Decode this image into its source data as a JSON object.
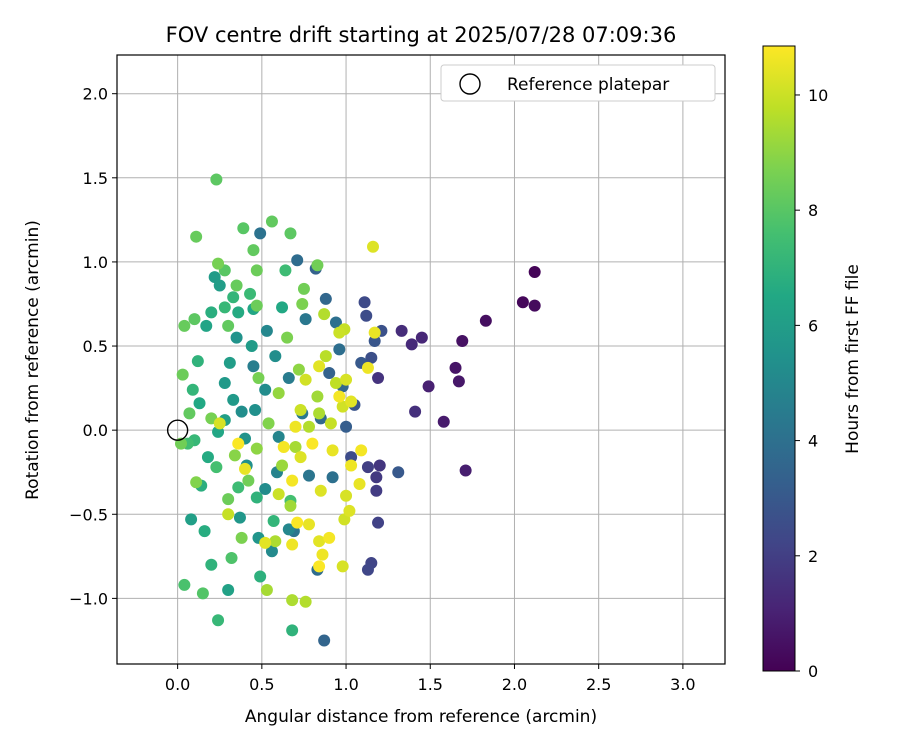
{
  "chart_data": {
    "type": "scatter",
    "title": "FOV centre drift starting at 2025/07/28 07:09:36",
    "xlabel": "Angular distance from reference (arcmin)",
    "ylabel": "Rotation from reference (arcmin)",
    "xlim": [
      -0.36,
      3.25
    ],
    "ylim": [
      -1.39,
      2.23
    ],
    "xticks": [
      "0.0",
      "0.5",
      "1.0",
      "1.5",
      "2.0",
      "2.5",
      "3.0"
    ],
    "xtick_values": [
      0,
      0.5,
      1.0,
      1.5,
      2.0,
      2.5,
      3.0
    ],
    "yticks": [
      "−1.0",
      "−0.5",
      "0.0",
      "0.5",
      "1.0",
      "1.5",
      "2.0"
    ],
    "ytick_values": [
      -1.0,
      -0.5,
      0.0,
      0.5,
      1.0,
      1.5,
      2.0
    ],
    "grid": true,
    "legend": {
      "placement": "top-right",
      "entries": [
        "Reference platepar"
      ]
    },
    "reference_point": {
      "x": 0.0,
      "y": 0.0
    },
    "colorbar": {
      "label": "Hours from first FF file",
      "range": [
        0,
        10.85
      ],
      "ticks": [
        "0",
        "2",
        "4",
        "6",
        "8",
        "10"
      ],
      "tick_values": [
        0,
        2,
        4,
        6,
        8,
        10
      ],
      "colormap": [
        "#440154",
        "#482475",
        "#414487",
        "#355f8d",
        "#2a788e",
        "#21918c",
        "#22a884",
        "#44bf70",
        "#7ad151",
        "#bddf26",
        "#fde725"
      ]
    },
    "points": [
      {
        "x": 2.12,
        "y": 0.94,
        "h": 0.1
      },
      {
        "x": 2.05,
        "y": 0.76,
        "h": 0.2
      },
      {
        "x": 2.12,
        "y": 0.74,
        "h": 0.3
      },
      {
        "x": 1.83,
        "y": 0.65,
        "h": 0.4
      },
      {
        "x": 1.69,
        "y": 0.53,
        "h": 0.5
      },
      {
        "x": 1.65,
        "y": 0.37,
        "h": 0.6
      },
      {
        "x": 1.67,
        "y": 0.29,
        "h": 0.7
      },
      {
        "x": 1.58,
        "y": 0.05,
        "h": 0.8
      },
      {
        "x": 1.71,
        "y": -0.24,
        "h": 0.9
      },
      {
        "x": 1.49,
        "y": 0.26,
        "h": 1.0
      },
      {
        "x": 1.45,
        "y": 0.55,
        "h": 1.2
      },
      {
        "x": 1.39,
        "y": 0.51,
        "h": 1.3
      },
      {
        "x": 1.33,
        "y": 0.59,
        "h": 1.4
      },
      {
        "x": 1.41,
        "y": 0.11,
        "h": 1.5
      },
      {
        "x": 1.19,
        "y": 0.31,
        "h": 1.6
      },
      {
        "x": 1.2,
        "y": -0.21,
        "h": 1.7
      },
      {
        "x": 1.18,
        "y": -0.28,
        "h": 1.8
      },
      {
        "x": 1.18,
        "y": -0.36,
        "h": 1.9
      },
      {
        "x": 1.13,
        "y": -0.22,
        "h": 2.0
      },
      {
        "x": 1.19,
        "y": -0.55,
        "h": 2.1
      },
      {
        "x": 1.15,
        "y": -0.79,
        "h": 2.2
      },
      {
        "x": 1.13,
        "y": -0.83,
        "h": 2.3
      },
      {
        "x": 1.11,
        "y": 0.76,
        "h": 2.4
      },
      {
        "x": 1.12,
        "y": 0.68,
        "h": 2.5
      },
      {
        "x": 1.15,
        "y": 0.43,
        "h": 2.6
      },
      {
        "x": 1.21,
        "y": 0.59,
        "h": 2.7
      },
      {
        "x": 1.31,
        "y": -0.25,
        "h": 3.0
      },
      {
        "x": 1.03,
        "y": -0.16,
        "h": 2.5
      },
      {
        "x": 1.05,
        "y": 0.15,
        "h": 2.8
      },
      {
        "x": 1.09,
        "y": 0.4,
        "h": 3.0
      },
      {
        "x": 1.17,
        "y": 0.53,
        "h": 2.9
      },
      {
        "x": 0.87,
        "y": -1.25,
        "h": 3.5
      },
      {
        "x": 0.98,
        "y": 0.26,
        "h": 3.6
      },
      {
        "x": 0.96,
        "y": 0.48,
        "h": 3.9
      },
      {
        "x": 0.94,
        "y": 0.64,
        "h": 4.0
      },
      {
        "x": 0.9,
        "y": 0.34,
        "h": 3.4
      },
      {
        "x": 0.88,
        "y": 0.78,
        "h": 3.6
      },
      {
        "x": 0.83,
        "y": -0.83,
        "h": 3.8
      },
      {
        "x": 0.82,
        "y": 0.96,
        "h": 3.4
      },
      {
        "x": 0.78,
        "y": -0.27,
        "h": 4.2
      },
      {
        "x": 0.71,
        "y": 1.01,
        "h": 3.8
      },
      {
        "x": 0.49,
        "y": 1.17,
        "h": 4.1
      },
      {
        "x": 0.76,
        "y": 0.66,
        "h": 4.3
      },
      {
        "x": 0.69,
        "y": -0.6,
        "h": 4.2
      },
      {
        "x": 0.59,
        "y": -0.25,
        "h": 4.8
      },
      {
        "x": 0.53,
        "y": 0.59,
        "h": 5.0
      },
      {
        "x": 0.45,
        "y": 0.38,
        "h": 4.6
      },
      {
        "x": 0.38,
        "y": 0.11,
        "h": 5.3
      },
      {
        "x": 0.35,
        "y": 0.55,
        "h": 5.5
      },
      {
        "x": 0.52,
        "y": -0.35,
        "h": 5.2
      },
      {
        "x": 0.6,
        "y": -0.04,
        "h": 4.9
      },
      {
        "x": 0.74,
        "y": 0.1,
        "h": 4.4
      },
      {
        "x": 0.66,
        "y": 0.31,
        "h": 4.5
      },
      {
        "x": 0.85,
        "y": 0.07,
        "h": 3.7
      },
      {
        "x": 1.0,
        "y": 0.02,
        "h": 3.2
      },
      {
        "x": 0.92,
        "y": -0.28,
        "h": 4.0
      },
      {
        "x": 0.41,
        "y": -0.21,
        "h": 5.4
      },
      {
        "x": 0.28,
        "y": 0.28,
        "h": 5.8
      },
      {
        "x": 0.22,
        "y": 0.91,
        "h": 5.9
      },
      {
        "x": 0.3,
        "y": -0.95,
        "h": 6.2
      },
      {
        "x": 0.25,
        "y": 0.86,
        "h": 6.0
      },
      {
        "x": 0.17,
        "y": 0.62,
        "h": 6.3
      },
      {
        "x": 0.37,
        "y": -0.52,
        "h": 5.7
      },
      {
        "x": 0.48,
        "y": -0.64,
        "h": 5.6
      },
      {
        "x": 0.56,
        "y": -0.72,
        "h": 5.1
      },
      {
        "x": 0.66,
        "y": -0.59,
        "h": 5.0
      },
      {
        "x": 0.28,
        "y": 0.06,
        "h": 6.1
      },
      {
        "x": 0.24,
        "y": -0.01,
        "h": 6.4
      },
      {
        "x": 0.33,
        "y": 0.18,
        "h": 5.8
      },
      {
        "x": 0.4,
        "y": -0.05,
        "h": 5.5
      },
      {
        "x": 0.46,
        "y": 0.12,
        "h": 5.4
      },
      {
        "x": 0.52,
        "y": 0.24,
        "h": 5.2
      },
      {
        "x": 0.31,
        "y": 0.4,
        "h": 6.0
      },
      {
        "x": 0.44,
        "y": 0.5,
        "h": 5.9
      },
      {
        "x": 0.58,
        "y": 0.44,
        "h": 5.3
      },
      {
        "x": 0.36,
        "y": 0.7,
        "h": 6.6
      },
      {
        "x": 0.45,
        "y": 0.72,
        "h": 6.4
      },
      {
        "x": 0.62,
        "y": 0.73,
        "h": 6.5
      },
      {
        "x": 0.68,
        "y": -1.19,
        "h": 7.0
      },
      {
        "x": 0.49,
        "y": -0.87,
        "h": 6.9
      },
      {
        "x": 0.24,
        "y": -1.13,
        "h": 7.2
      },
      {
        "x": 0.2,
        "y": -0.8,
        "h": 7.0
      },
      {
        "x": 0.16,
        "y": -0.6,
        "h": 6.7
      },
      {
        "x": 0.08,
        "y": -0.53,
        "h": 6.1
      },
      {
        "x": 0.14,
        "y": -0.33,
        "h": 6.8
      },
      {
        "x": 0.18,
        "y": -0.16,
        "h": 6.6
      },
      {
        "x": 0.13,
        "y": 0.16,
        "h": 6.5
      },
      {
        "x": 0.09,
        "y": 0.24,
        "h": 7.1
      },
      {
        "x": 0.12,
        "y": 0.41,
        "h": 7.0
      },
      {
        "x": 0.2,
        "y": 0.7,
        "h": 6.8
      },
      {
        "x": 0.28,
        "y": 0.73,
        "h": 7.2
      },
      {
        "x": 0.33,
        "y": 0.79,
        "h": 7.1
      },
      {
        "x": 0.43,
        "y": 0.81,
        "h": 7.3
      },
      {
        "x": 0.64,
        "y": 0.95,
        "h": 7.4
      },
      {
        "x": 0.06,
        "y": -0.08,
        "h": 7.5
      },
      {
        "x": 0.1,
        "y": -0.06,
        "h": 7.2
      },
      {
        "x": 0.23,
        "y": -0.22,
        "h": 7.6
      },
      {
        "x": 0.36,
        "y": -0.34,
        "h": 7.4
      },
      {
        "x": 0.47,
        "y": -0.4,
        "h": 7.0
      },
      {
        "x": 0.57,
        "y": -0.54,
        "h": 7.1
      },
      {
        "x": 0.67,
        "y": -0.42,
        "h": 7.6
      },
      {
        "x": 0.32,
        "y": -0.76,
        "h": 7.8
      },
      {
        "x": 0.15,
        "y": -0.97,
        "h": 7.9
      },
      {
        "x": 0.04,
        "y": -0.92,
        "h": 7.7
      },
      {
        "x": 0.23,
        "y": 1.49,
        "h": 8.1
      },
      {
        "x": 0.39,
        "y": 1.2,
        "h": 8.0
      },
      {
        "x": 0.56,
        "y": 1.24,
        "h": 8.2
      },
      {
        "x": 0.67,
        "y": 1.17,
        "h": 8.1
      },
      {
        "x": 0.11,
        "y": 1.15,
        "h": 8.3
      },
      {
        "x": 0.45,
        "y": 1.07,
        "h": 8.2
      },
      {
        "x": 0.47,
        "y": 0.95,
        "h": 8.4
      },
      {
        "x": 0.28,
        "y": 0.95,
        "h": 8.0
      },
      {
        "x": 0.83,
        "y": 0.98,
        "h": 8.5
      },
      {
        "x": 0.24,
        "y": 0.99,
        "h": 8.6
      },
      {
        "x": 0.35,
        "y": 0.86,
        "h": 8.3
      },
      {
        "x": 0.75,
        "y": 0.84,
        "h": 8.5
      },
      {
        "x": 0.74,
        "y": 0.75,
        "h": 8.7
      },
      {
        "x": 0.47,
        "y": 0.74,
        "h": 8.4
      },
      {
        "x": 0.3,
        "y": 0.62,
        "h": 8.2
      },
      {
        "x": 0.04,
        "y": 0.62,
        "h": 8.3
      },
      {
        "x": 0.03,
        "y": 0.33,
        "h": 8.4
      },
      {
        "x": 0.1,
        "y": 0.66,
        "h": 8.1
      },
      {
        "x": 0.02,
        "y": -0.08,
        "h": 8.5
      },
      {
        "x": 0.11,
        "y": -0.31,
        "h": 8.8
      },
      {
        "x": 0.07,
        "y": 0.1,
        "h": 8.2
      },
      {
        "x": 0.2,
        "y": 0.07,
        "h": 8.6
      },
      {
        "x": 0.3,
        "y": -0.41,
        "h": 8.4
      },
      {
        "x": 0.38,
        "y": -0.64,
        "h": 8.7
      },
      {
        "x": 0.42,
        "y": -0.3,
        "h": 8.5
      },
      {
        "x": 0.34,
        "y": -0.15,
        "h": 8.9
      },
      {
        "x": 0.47,
        "y": -0.11,
        "h": 9.0
      },
      {
        "x": 0.54,
        "y": 0.04,
        "h": 8.8
      },
      {
        "x": 0.48,
        "y": 0.31,
        "h": 8.6
      },
      {
        "x": 0.65,
        "y": 0.55,
        "h": 8.7
      },
      {
        "x": 0.6,
        "y": 0.22,
        "h": 9.1
      },
      {
        "x": 0.72,
        "y": 0.36,
        "h": 9.0
      },
      {
        "x": 0.53,
        "y": -0.95,
        "h": 9.4
      },
      {
        "x": 0.68,
        "y": -1.01,
        "h": 9.5
      },
      {
        "x": 0.76,
        "y": -1.02,
        "h": 9.6
      },
      {
        "x": 0.58,
        "y": -0.66,
        "h": 9.5
      },
      {
        "x": 0.67,
        "y": -0.45,
        "h": 9.3
      },
      {
        "x": 0.62,
        "y": -0.21,
        "h": 9.2
      },
      {
        "x": 0.7,
        "y": -0.1,
        "h": 9.4
      },
      {
        "x": 0.78,
        "y": 0.02,
        "h": 9.6
      },
      {
        "x": 0.84,
        "y": 0.1,
        "h": 9.5
      },
      {
        "x": 0.83,
        "y": 0.2,
        "h": 9.3
      },
      {
        "x": 0.88,
        "y": 0.44,
        "h": 9.7
      },
      {
        "x": 0.94,
        "y": 0.28,
        "h": 9.8
      },
      {
        "x": 0.87,
        "y": 0.69,
        "h": 9.6
      },
      {
        "x": 0.99,
        "y": 0.6,
        "h": 9.9
      },
      {
        "x": 0.96,
        "y": 0.58,
        "h": 10.0
      },
      {
        "x": 1.16,
        "y": 1.09,
        "h": 10.3
      },
      {
        "x": 1.17,
        "y": 0.58,
        "h": 10.5
      },
      {
        "x": 1.13,
        "y": 0.37,
        "h": 10.6
      },
      {
        "x": 1.0,
        "y": 0.3,
        "h": 10.2
      },
      {
        "x": 1.03,
        "y": 0.17,
        "h": 10.4
      },
      {
        "x": 0.98,
        "y": 0.14,
        "h": 10.1
      },
      {
        "x": 1.09,
        "y": -0.12,
        "h": 10.7
      },
      {
        "x": 1.03,
        "y": -0.21,
        "h": 10.6
      },
      {
        "x": 1.0,
        "y": -0.39,
        "h": 10.2
      },
      {
        "x": 1.02,
        "y": -0.48,
        "h": 10.3
      },
      {
        "x": 0.99,
        "y": -0.53,
        "h": 10.1
      },
      {
        "x": 1.08,
        "y": -0.32,
        "h": 10.5
      },
      {
        "x": 0.9,
        "y": -0.64,
        "h": 10.7
      },
      {
        "x": 0.84,
        "y": -0.66,
        "h": 10.4
      },
      {
        "x": 0.86,
        "y": -0.74,
        "h": 10.6
      },
      {
        "x": 0.84,
        "y": -0.81,
        "h": 10.8
      },
      {
        "x": 0.98,
        "y": -0.81,
        "h": 10.2
      },
      {
        "x": 0.78,
        "y": -0.56,
        "h": 10.5
      },
      {
        "x": 0.71,
        "y": -0.55,
        "h": 10.8
      },
      {
        "x": 0.68,
        "y": -0.68,
        "h": 10.6
      },
      {
        "x": 0.52,
        "y": -0.67,
        "h": 10.4
      },
      {
        "x": 0.68,
        "y": -0.3,
        "h": 10.7
      },
      {
        "x": 0.73,
        "y": -0.16,
        "h": 10.3
      },
      {
        "x": 0.8,
        "y": -0.08,
        "h": 10.8
      },
      {
        "x": 0.92,
        "y": -0.12,
        "h": 10.5
      },
      {
        "x": 0.85,
        "y": -0.36,
        "h": 10.3
      },
      {
        "x": 0.76,
        "y": 0.3,
        "h": 10.1
      },
      {
        "x": 0.84,
        "y": 0.38,
        "h": 10.4
      },
      {
        "x": 0.7,
        "y": 0.02,
        "h": 10.6
      },
      {
        "x": 0.63,
        "y": -0.1,
        "h": 10.7
      },
      {
        "x": 0.4,
        "y": -0.23,
        "h": 10.5
      },
      {
        "x": 0.36,
        "y": -0.08,
        "h": 10.8
      },
      {
        "x": 0.25,
        "y": 0.04,
        "h": 10.2
      },
      {
        "x": 0.3,
        "y": -0.5,
        "h": 9.9
      },
      {
        "x": 0.6,
        "y": -0.38,
        "h": 10.0
      },
      {
        "x": 0.73,
        "y": 0.12,
        "h": 10.0
      },
      {
        "x": 0.91,
        "y": 0.04,
        "h": 9.9
      },
      {
        "x": 0.96,
        "y": 0.2,
        "h": 10.7
      }
    ]
  }
}
